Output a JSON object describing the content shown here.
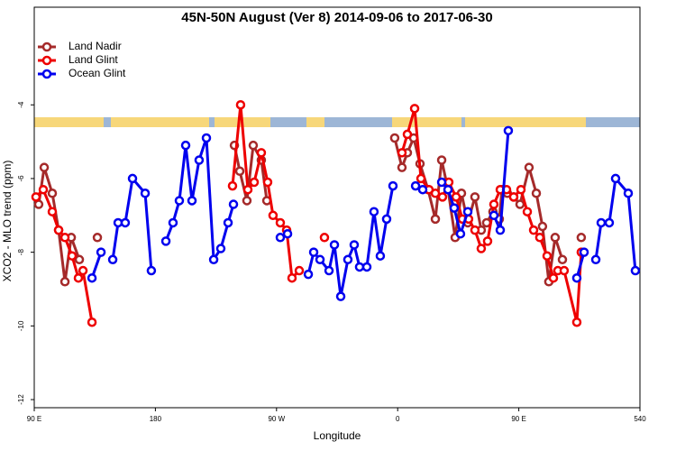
{
  "chart_data": {
    "type": "line",
    "title": "45N-50N August (Ver 8)   2014-09-06 to 2017-06-30",
    "x_label": "Longitude",
    "y_label": "XCO2 - MLO trend (ppm)",
    "xlim": [
      90,
      540
    ],
    "xticks": [
      {
        "value": 90,
        "label": "90 E"
      },
      180,
      {
        "value": 270,
        "label": "90 W"
      },
      {
        "value": 360,
        "label": "0"
      },
      {
        "value": 450,
        "label": "90 E"
      },
      540
    ],
    "ylim": [
      -12.22,
      -1.35
    ],
    "yticks": [
      -4,
      -6,
      -8,
      -10,
      -12
    ],
    "legend": "top-left",
    "series": [
      {
        "name": "Land Nadir",
        "color": "#a52a2a",
        "x": [
          93.3,
          97.4,
          103.4,
          108.1,
          112.8,
          117.5,
          123.5,
          null,
          136.9,
          null,
          238.7,
          242.7,
          248.0,
          252.7,
          258.7,
          262.8,
          null,
          357.8,
          363.2,
          367.2,
          371.9,
          376.6,
          382.6,
          388.0,
          392.7,
          397.4,
          402.7,
          407.4,
          412.1,
          417.4,
          422.1,
          426.1,
          430.8,
          435.5,
          437.5,
          441.5,
          446.2,
          450.9,
          457.6,
          463.0,
          467.6,
          472.3,
          477.0,
          482.4,
          null,
          496.4
        ],
        "values": [
          -6.7,
          -5.7,
          -6.4,
          -7.4,
          -8.8,
          -7.6,
          -8.2,
          null,
          -7.6,
          null,
          -5.1,
          -5.8,
          -6.6,
          -5.1,
          -5.5,
          -6.6,
          null,
          -4.9,
          -5.7,
          -5.3,
          -4.9,
          -5.6,
          -6.3,
          -7.1,
          -5.5,
          -6.3,
          -7.6,
          -6.4,
          -7.2,
          -6.5,
          -7.4,
          -7.2,
          -6.9,
          -7.1,
          -6.3,
          -6.4,
          -6.5,
          -6.7,
          -5.7,
          -6.4,
          -7.3,
          -8.8,
          -7.6,
          -8.2,
          null,
          -7.6
        ]
      },
      {
        "name": "Land Glint",
        "color": "#ee0000",
        "x": [
          91.3,
          96.7,
          103.4,
          108.1,
          112.8,
          118.1,
          122.8,
          126.2,
          132.9,
          null,
          237.3,
          243.3,
          248.7,
          253.4,
          258.7,
          263.4,
          267.4,
          272.8,
          277.5,
          281.5,
          286.9,
          null,
          305.6,
          null,
          363.2,
          367.2,
          372.6,
          377.3,
          383.3,
          388.0,
          393.3,
          398.0,
          403.4,
          408.1,
          412.7,
          417.4,
          422.1,
          426.8,
          431.5,
          436.2,
          440.9,
          446.2,
          451.6,
          456.3,
          461.0,
          465.6,
          471.0,
          475.7,
          479.0,
          483.7,
          493.1,
          496.4
        ],
        "values": [
          -6.5,
          -6.3,
          -6.9,
          -7.4,
          -7.6,
          -8.1,
          -8.7,
          -8.5,
          -9.9,
          null,
          -6.2,
          -4.0,
          -6.3,
          -6.1,
          -5.3,
          -6.1,
          -7.0,
          -7.2,
          -7.4,
          -8.7,
          -8.5,
          null,
          -7.6,
          null,
          -5.3,
          -4.8,
          -4.1,
          -6.0,
          -6.3,
          -6.4,
          -6.5,
          -6.1,
          -6.5,
          -7.1,
          -7.1,
          -7.4,
          -7.9,
          -7.7,
          -6.7,
          -6.3,
          -6.3,
          -6.5,
          -6.3,
          -6.9,
          -7.4,
          -7.6,
          -8.1,
          -8.7,
          -8.5,
          -8.5,
          -9.9,
          -8.0
        ]
      },
      {
        "name": "Ocean Glint",
        "color": "#0000ee",
        "x": [
          132.9,
          139.6,
          null,
          148.3,
          152.3,
          157.6,
          163.0,
          172.4,
          177.0,
          null,
          187.8,
          193.1,
          197.8,
          202.5,
          207.2,
          212.5,
          217.9,
          223.3,
          228.6,
          234.0,
          238.0,
          null,
          272.8,
          278.2,
          null,
          293.6,
          297.6,
          302.3,
          309.0,
          313.0,
          317.7,
          323.0,
          327.7,
          331.7,
          337.1,
          342.4,
          347.1,
          351.8,
          356.5,
          null,
          373.3,
          378.6,
          null,
          392.7,
          397.4,
          402.0,
          406.7,
          412.1,
          null,
          431.5,
          436.2,
          442.2,
          null,
          493.1,
          498.5,
          null,
          507.2,
          511.2,
          517.2,
          521.9,
          531.3,
          536.6
        ],
        "values": [
          -8.7,
          -8.0,
          null,
          -8.2,
          -7.2,
          -7.2,
          -6.0,
          -6.4,
          -8.5,
          null,
          -7.7,
          -7.2,
          -6.6,
          -5.1,
          -6.6,
          -5.5,
          -4.9,
          -8.2,
          -7.9,
          -7.2,
          -6.7,
          null,
          -7.6,
          -7.5,
          null,
          -8.6,
          -8.0,
          -8.2,
          -8.5,
          -7.8,
          -9.2,
          -8.2,
          -7.8,
          -8.4,
          -8.4,
          -6.9,
          -8.1,
          -7.1,
          -6.2,
          null,
          -6.2,
          -6.3,
          null,
          -6.1,
          -6.3,
          -6.8,
          -7.5,
          -6.9,
          null,
          -7.0,
          -7.4,
          -4.7,
          null,
          -8.7,
          -8.0,
          null,
          -8.2,
          -7.2,
          -7.2,
          -6.0,
          -6.4,
          -8.5
        ]
      }
    ]
  }
}
